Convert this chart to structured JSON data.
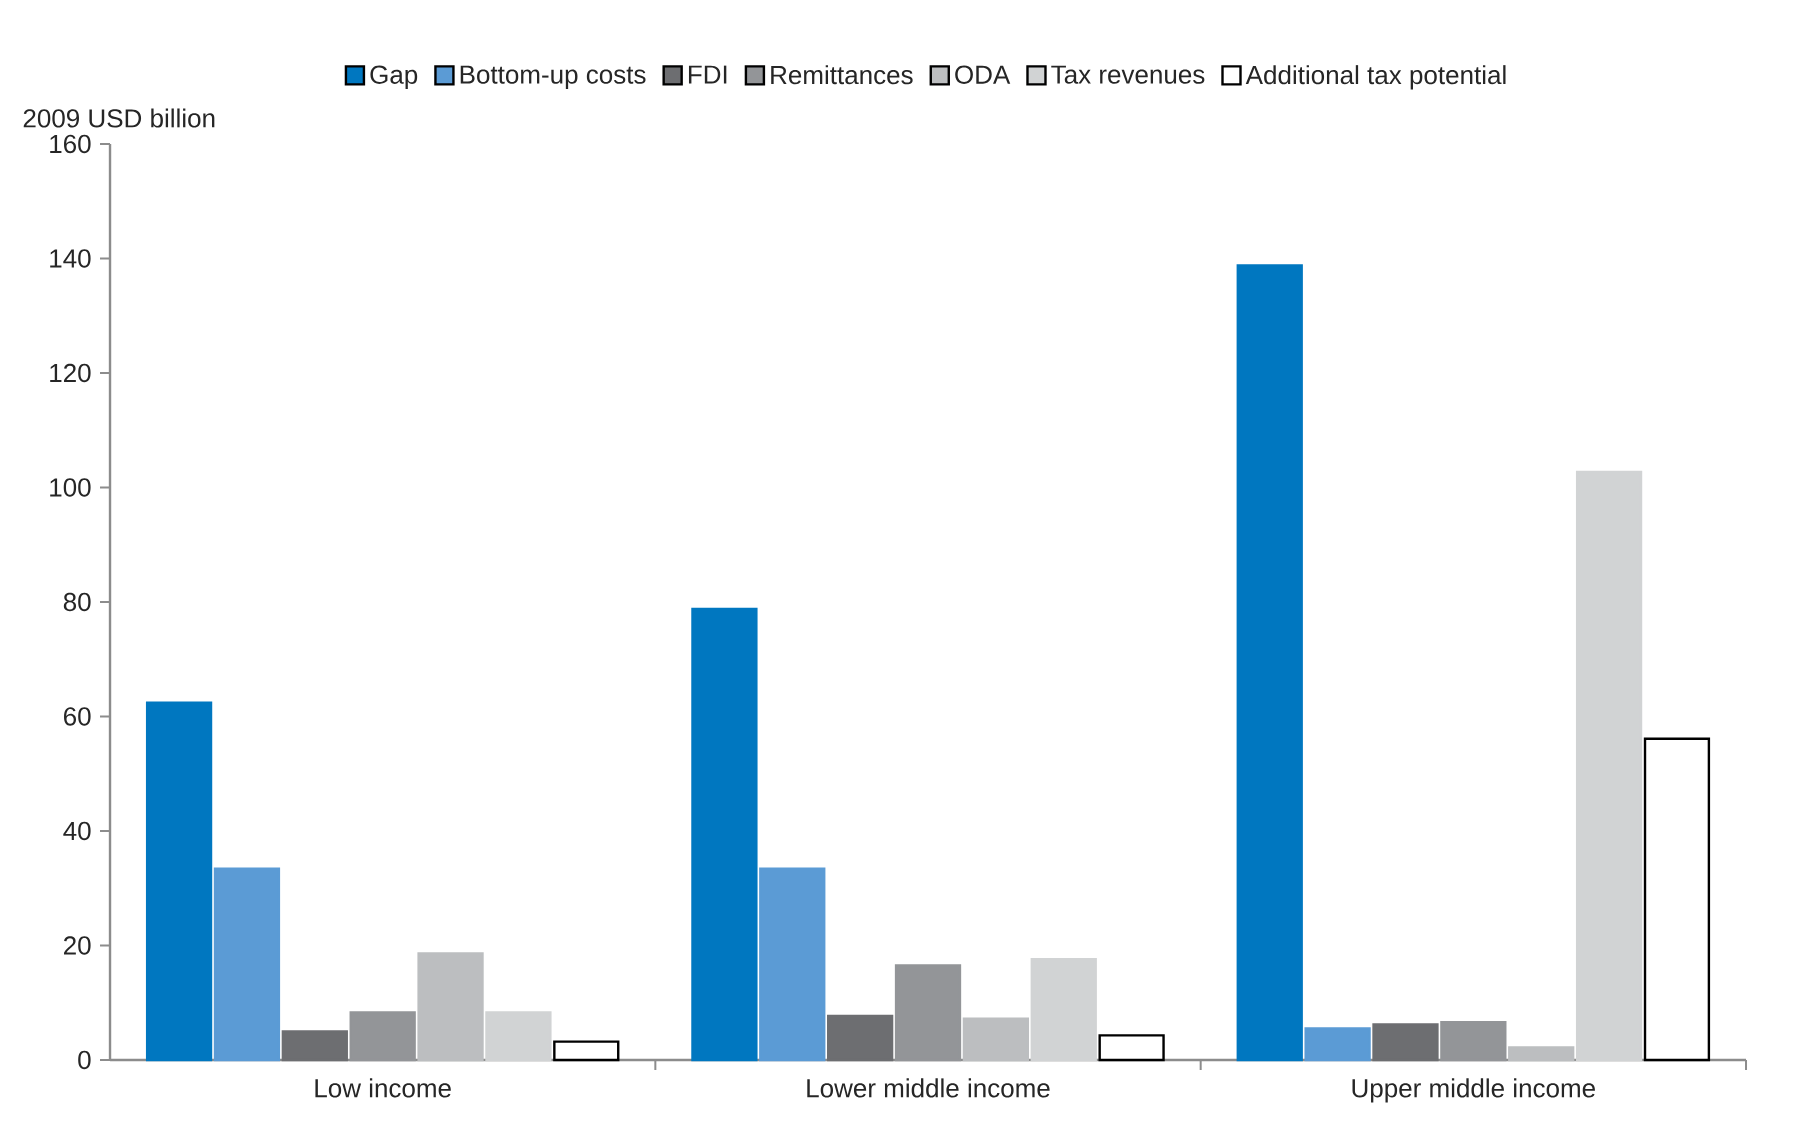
{
  "chart_data": {
    "type": "bar",
    "ylabel": "2009 USD billion",
    "categories": [
      "Low income",
      "Lower middle income",
      "Upper middle income"
    ],
    "series": [
      {
        "name": "Gap",
        "color": "#0077c0",
        "values": [
          62.4,
          78.8,
          138.8
        ]
      },
      {
        "name": "Bottom-up costs",
        "color": "#5b9bd5",
        "values": [
          33.4,
          33.4,
          5.5
        ]
      },
      {
        "name": "FDI",
        "color": "#6d6e71",
        "values": [
          5.0,
          7.7,
          6.2
        ]
      },
      {
        "name": "Remittances",
        "color": "#939598",
        "values": [
          8.3,
          16.5,
          6.6
        ]
      },
      {
        "name": "ODA",
        "color": "#bcbec0",
        "values": [
          18.6,
          7.2,
          2.2
        ]
      },
      {
        "name": "Tax revenues",
        "color": "#d1d3d4",
        "values": [
          8.3,
          17.6,
          102.7
        ]
      },
      {
        "name": "Additional tax potential",
        "color": "#ffffff",
        "values": [
          3.2,
          4.3,
          56.1
        ]
      }
    ],
    "ylim": [
      0,
      160
    ],
    "yticks": [
      0,
      20,
      40,
      60,
      80,
      100,
      120,
      140,
      160
    ],
    "legend": "top",
    "grid": false
  }
}
